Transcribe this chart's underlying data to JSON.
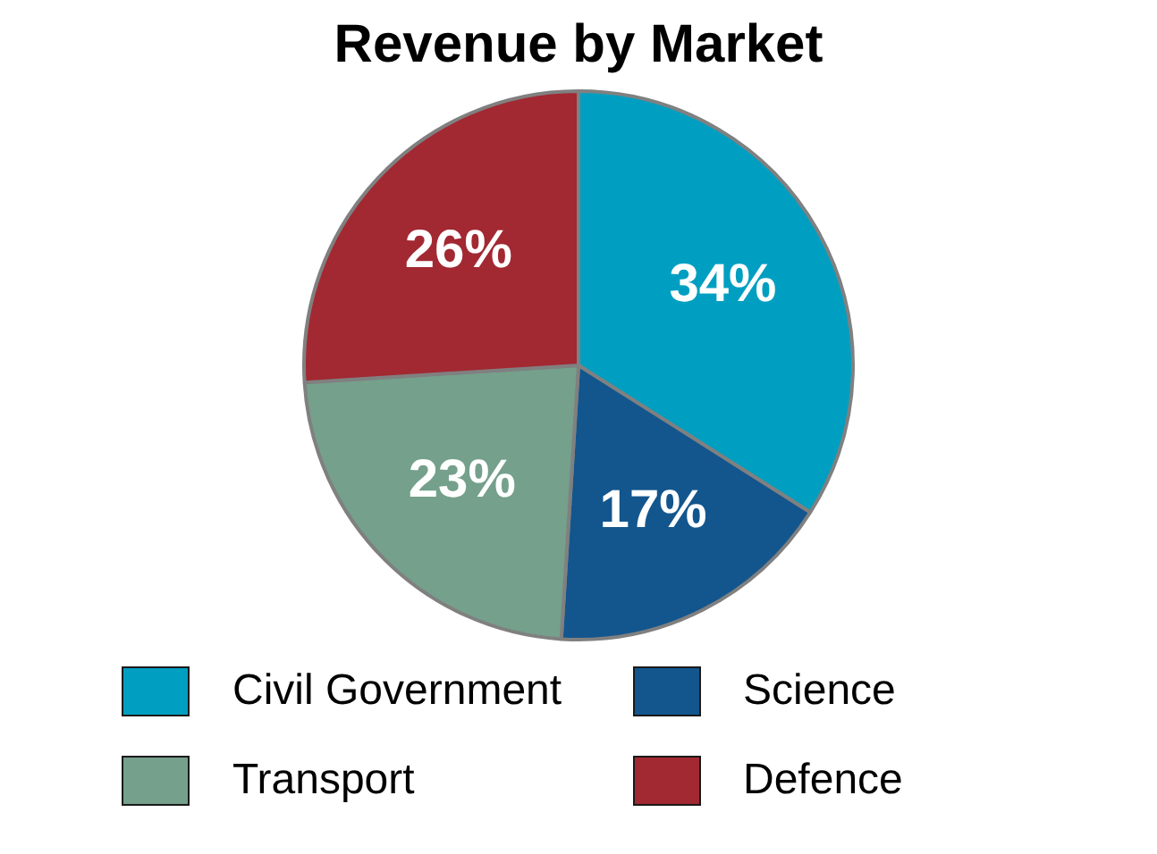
{
  "chart_data": {
    "type": "pie",
    "title": "Revenue by Market",
    "categories": [
      "Civil Government",
      "Science",
      "Transport",
      "Defence"
    ],
    "values": [
      34,
      17,
      23,
      26
    ],
    "colors": [
      "#009fc1",
      "#13568e",
      "#74a08c",
      "#a22832"
    ],
    "value_labels": [
      "34%",
      "17%",
      "23%",
      "26%"
    ],
    "legend": "bottom"
  }
}
